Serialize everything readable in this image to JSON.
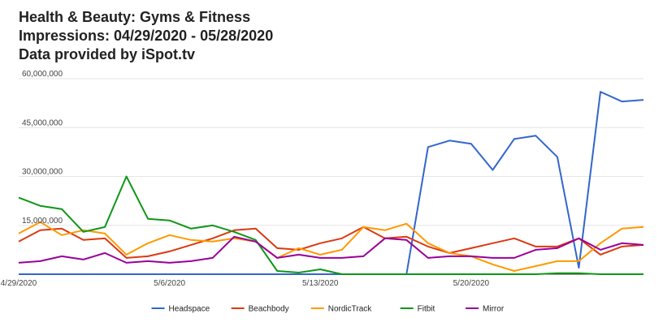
{
  "titles": {
    "line1": "Health & Beauty: Gyms & Fitness",
    "line2": "Impressions: 04/29/2020 - 05/28/2020",
    "line3": "Data provided by iSpot.tv"
  },
  "chart_data": {
    "type": "line",
    "title": "Health & Beauty: Gyms & Fitness",
    "subtitle": "Impressions: 04/29/2020 - 05/28/2020",
    "source": "Data provided by iSpot.tv",
    "xlabel": "",
    "ylabel": "",
    "ylim": [
      0,
      60000000
    ],
    "yticks": [
      0,
      15000000,
      30000000,
      45000000,
      60000000
    ],
    "ytick_labels": [
      "",
      "15,000,000",
      "30,000,000",
      "45,000,000",
      "60,000,000"
    ],
    "x": [
      "4/29/2020",
      "4/30/2020",
      "5/1/2020",
      "5/2/2020",
      "5/3/2020",
      "5/4/2020",
      "5/5/2020",
      "5/6/2020",
      "5/7/2020",
      "5/8/2020",
      "5/9/2020",
      "5/10/2020",
      "5/11/2020",
      "5/12/2020",
      "5/13/2020",
      "5/14/2020",
      "5/15/2020",
      "5/16/2020",
      "5/17/2020",
      "5/18/2020",
      "5/19/2020",
      "5/20/2020",
      "5/21/2020",
      "5/22/2020",
      "5/23/2020",
      "5/24/2020",
      "5/25/2020",
      "5/26/2020",
      "5/27/2020",
      "5/28/2020"
    ],
    "xtick_labels": [
      "4/29/2020",
      "5/6/2020",
      "5/13/2020",
      "5/20/2020"
    ],
    "xtick_indices": [
      0,
      7,
      14,
      21
    ],
    "grid": true,
    "legend_position": "bottom",
    "series": [
      {
        "name": "Headspace",
        "color": "#3366cc",
        "values": [
          0,
          0,
          0,
          0,
          0,
          0,
          0,
          0,
          0,
          0,
          0,
          0,
          0,
          0,
          0,
          0,
          0,
          0,
          0,
          39000000,
          41000000,
          40000000,
          32000000,
          41500000,
          42500000,
          36000000,
          2000000,
          56000000,
          53000000,
          53500000
        ]
      },
      {
        "name": "Beachbody",
        "color": "#dc3912",
        "values": [
          10000000,
          13500000,
          14000000,
          10500000,
          11000000,
          5000000,
          5500000,
          7000000,
          9000000,
          11000000,
          13500000,
          14000000,
          8000000,
          7500000,
          9500000,
          11000000,
          14500000,
          11000000,
          11500000,
          8500000,
          6500000,
          8000000,
          9500000,
          11000000,
          8500000,
          8500000,
          11000000,
          6000000,
          8500000,
          9000000
        ]
      },
      {
        "name": "NordicTrack",
        "color": "#ff9900",
        "values": [
          12500000,
          16000000,
          12000000,
          13500000,
          12500000,
          6000000,
          9500000,
          12000000,
          10500000,
          10000000,
          11000000,
          10000000,
          5000000,
          8000000,
          6000000,
          7500000,
          14500000,
          13500000,
          15500000,
          9500000,
          6500000,
          5500000,
          3000000,
          1000000,
          2500000,
          4000000,
          4000000,
          9500000,
          14000000,
          14500000
        ]
      },
      {
        "name": "Fitbit",
        "color": "#109618",
        "values": [
          23500000,
          21000000,
          20000000,
          13000000,
          14500000,
          30000000,
          17000000,
          16500000,
          14000000,
          15000000,
          13000000,
          10500000,
          1000000,
          500000,
          1500000,
          0,
          0,
          0,
          0,
          0,
          0,
          0,
          0,
          0,
          0,
          300000,
          300000,
          0,
          0,
          0
        ]
      },
      {
        "name": "Mirror",
        "color": "#990099",
        "values": [
          3500000,
          4000000,
          5500000,
          4500000,
          6500000,
          3500000,
          4000000,
          3500000,
          4000000,
          5000000,
          11500000,
          10000000,
          5000000,
          6000000,
          5000000,
          5000000,
          5500000,
          11000000,
          10500000,
          5000000,
          5500000,
          5500000,
          5000000,
          5000000,
          7500000,
          8000000,
          11000000,
          7500000,
          9500000,
          9000000
        ]
      }
    ]
  }
}
